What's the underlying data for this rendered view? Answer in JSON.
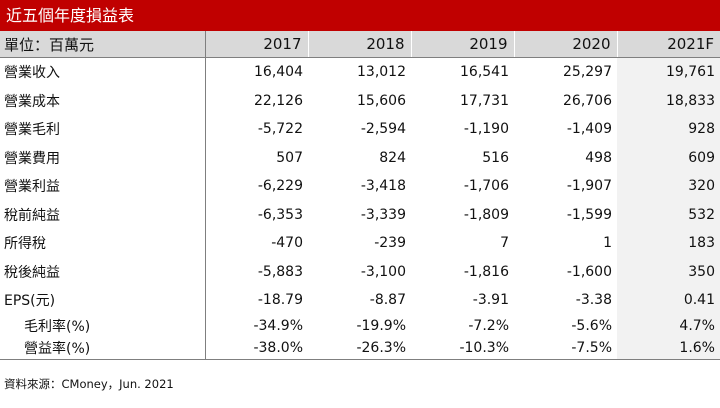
{
  "title": "近五個年度損益表",
  "header": {
    "unit_label": "單位：百萬元",
    "years": [
      "2017",
      "2018",
      "2019",
      "2020",
      "2021F"
    ]
  },
  "rows": [
    {
      "label": "營業收入",
      "values": [
        "16,404",
        "13,012",
        "16,541",
        "25,297",
        "19,761"
      ]
    },
    {
      "label": "營業成本",
      "values": [
        "22,126",
        "15,606",
        "17,731",
        "26,706",
        "18,833"
      ]
    },
    {
      "label": "營業毛利",
      "values": [
        "-5,722",
        "-2,594",
        "-1,190",
        "-1,409",
        "928"
      ]
    },
    {
      "label": "營業費用",
      "values": [
        "507",
        "824",
        "516",
        "498",
        "609"
      ]
    },
    {
      "label": "營業利益",
      "values": [
        "-6,229",
        "-3,418",
        "-1,706",
        "-1,907",
        "320"
      ]
    },
    {
      "label": "稅前純益",
      "values": [
        "-6,353",
        "-3,339",
        "-1,809",
        "-1,599",
        "532"
      ]
    },
    {
      "label": "所得稅",
      "values": [
        "-470",
        "-239",
        "7",
        "1",
        "183"
      ]
    },
    {
      "label": "稅後純益",
      "values": [
        "-5,883",
        "-3,100",
        "-1,816",
        "-1,600",
        "350"
      ]
    },
    {
      "label": "EPS(元)",
      "values": [
        "-18.79",
        "-8.87",
        "-3.91",
        "-3.38",
        "0.41"
      ]
    },
    {
      "label": "毛利率(%)",
      "values": [
        "-34.9%",
        "-19.9%",
        "-7.2%",
        "-5.6%",
        "4.7%"
      ]
    },
    {
      "label": "營益率(%)",
      "values": [
        "-38.0%",
        "-26.3%",
        "-10.3%",
        "-7.5%",
        "1.6%"
      ]
    }
  ],
  "source": "資料來源：CMoney，Jun. 2021",
  "colors": {
    "title_bg": "#c00000",
    "header_bg": "#d9d9d9",
    "forecast_bg": "#f2f2f2"
  }
}
